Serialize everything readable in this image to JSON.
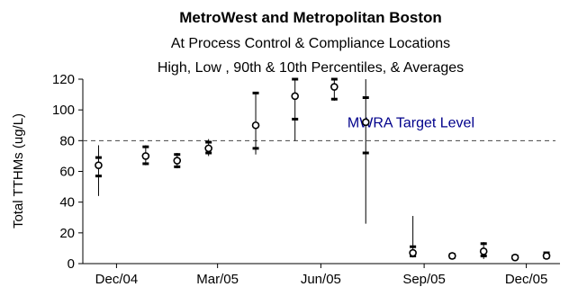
{
  "chart_data": {
    "type": "scatter",
    "title": "MetroWest and Metropolitan Boston",
    "subtitle": "At Process Control & Compliance Locations",
    "subtitle2": "High, Low , 90th & 10th Percentiles, & Averages",
    "ylabel": "Total TTHMs (ug/L)",
    "xlabel": "",
    "ylim": [
      0,
      120
    ],
    "yticks": [
      0,
      20,
      40,
      60,
      80,
      100,
      120
    ],
    "xlim": [
      "2004-11-01",
      "2005-12-31"
    ],
    "xticks": [
      {
        "date": "2004-12-01",
        "label": "Dec/04"
      },
      {
        "date": "2005-03-01",
        "label": "Mar/05"
      },
      {
        "date": "2005-06-01",
        "label": "Jun/05"
      },
      {
        "date": "2005-09-01",
        "label": "Sep/05"
      },
      {
        "date": "2005-12-01",
        "label": "Dec/05"
      }
    ],
    "target_line": {
      "value": 80,
      "label": "MWRA Target Level",
      "color": "#00008B",
      "style": "dashed"
    },
    "points": [
      {
        "date": "2004-11-15",
        "high": 77,
        "p90": 69,
        "avg": 64,
        "p10": 57,
        "low": 44
      },
      {
        "date": "2004-12-27",
        "high": 77,
        "p90": 76,
        "avg": 70,
        "p10": 65,
        "low": 64
      },
      {
        "date": "2005-01-24",
        "high": 72,
        "p90": 71,
        "avg": 67,
        "p10": 63,
        "low": 62
      },
      {
        "date": "2005-02-21",
        "high": 81,
        "p90": 79,
        "avg": 75,
        "p10": 72,
        "low": 70
      },
      {
        "date": "2005-04-04",
        "high": 111,
        "p90": 111,
        "avg": 90,
        "p10": 75,
        "low": 71
      },
      {
        "date": "2005-05-09",
        "high": 120,
        "p90": 120,
        "avg": 109,
        "p10": 94,
        "low": 80
      },
      {
        "date": "2005-06-13",
        "high": 120,
        "p90": 120,
        "avg": 115,
        "p10": 107,
        "low": 106
      },
      {
        "date": "2005-07-11",
        "high": 120,
        "p90": 108,
        "avg": 92,
        "p10": 72,
        "low": 26
      },
      {
        "date": "2005-08-22",
        "high": 31,
        "p90": 11,
        "avg": 7,
        "p10": 5,
        "low": 4
      },
      {
        "date": "2005-09-26",
        "high": 6,
        "p90": 6,
        "avg": 5,
        "p10": 4,
        "low": 3
      },
      {
        "date": "2005-10-24",
        "high": 14,
        "p90": 13,
        "avg": 8,
        "p10": 5,
        "low": 3
      },
      {
        "date": "2005-11-21",
        "high": 5,
        "p90": 5,
        "avg": 4,
        "p10": 4,
        "low": 3
      },
      {
        "date": "2005-12-19",
        "high": 7,
        "p90": 7,
        "avg": 5,
        "p10": 4,
        "low": 3
      }
    ],
    "grid": false,
    "legend": "none"
  }
}
